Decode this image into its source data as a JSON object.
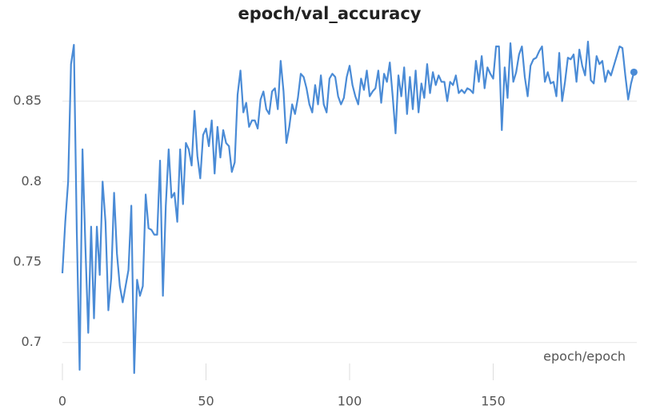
{
  "chart_data": {
    "type": "line",
    "title": "epoch/val_accuracy",
    "x_label": "epoch/epoch",
    "color": "#4a8bd6",
    "x": [
      0,
      1,
      2,
      3,
      4,
      5,
      6,
      7,
      8,
      9,
      10,
      11,
      12,
      13,
      14,
      15,
      16,
      17,
      18,
      19,
      20,
      21,
      22,
      23,
      24,
      25,
      26,
      27,
      28,
      29,
      30,
      31,
      32,
      33,
      34,
      35,
      36,
      37,
      38,
      39,
      40,
      41,
      42,
      43,
      44,
      45,
      46,
      47,
      48,
      49,
      50,
      51,
      52,
      53,
      54,
      55,
      56,
      57,
      58,
      59,
      60,
      61,
      62,
      63,
      64,
      65,
      66,
      67,
      68,
      69,
      70,
      71,
      72,
      73,
      74,
      75,
      76,
      77,
      78,
      79,
      80,
      81,
      82,
      83,
      84,
      85,
      86,
      87,
      88,
      89,
      90,
      91,
      92,
      93,
      94,
      95,
      96,
      97,
      98,
      99,
      100,
      101,
      102,
      103,
      104,
      105,
      106,
      107,
      108,
      109,
      110,
      111,
      112,
      113,
      114,
      115,
      116,
      117,
      118,
      119,
      120,
      121,
      122,
      123,
      124,
      125,
      126,
      127,
      128,
      129,
      130,
      131,
      132,
      133,
      134,
      135,
      136,
      137,
      138,
      139,
      140,
      141,
      142,
      143,
      144,
      145,
      146,
      147,
      148,
      149,
      150,
      151,
      152,
      153,
      154,
      155,
      156,
      157,
      158,
      159,
      160,
      161,
      162,
      163,
      164,
      165,
      166,
      167,
      168,
      169,
      170,
      171,
      172,
      173,
      174,
      175,
      176,
      177,
      178,
      179,
      180,
      181,
      182,
      183,
      184,
      185,
      186,
      187,
      188,
      189,
      190,
      191,
      192,
      193,
      194,
      195,
      196,
      197,
      198,
      199
    ],
    "values": [
      0.743,
      0.775,
      0.8,
      0.873,
      0.885,
      0.77,
      0.683,
      0.82,
      0.76,
      0.706,
      0.772,
      0.715,
      0.772,
      0.742,
      0.8,
      0.775,
      0.72,
      0.74,
      0.793,
      0.755,
      0.735,
      0.725,
      0.735,
      0.745,
      0.785,
      0.681,
      0.739,
      0.729,
      0.735,
      0.792,
      0.771,
      0.77,
      0.767,
      0.767,
      0.813,
      0.729,
      0.785,
      0.82,
      0.79,
      0.793,
      0.775,
      0.82,
      0.786,
      0.824,
      0.82,
      0.81,
      0.844,
      0.816,
      0.802,
      0.829,
      0.833,
      0.822,
      0.838,
      0.805,
      0.834,
      0.815,
      0.832,
      0.824,
      0.822,
      0.806,
      0.812,
      0.854,
      0.869,
      0.843,
      0.849,
      0.834,
      0.838,
      0.838,
      0.833,
      0.851,
      0.856,
      0.845,
      0.842,
      0.856,
      0.858,
      0.845,
      0.875,
      0.856,
      0.824,
      0.834,
      0.848,
      0.842,
      0.852,
      0.867,
      0.865,
      0.858,
      0.848,
      0.843,
      0.86,
      0.848,
      0.866,
      0.848,
      0.843,
      0.864,
      0.867,
      0.865,
      0.853,
      0.848,
      0.852,
      0.865,
      0.872,
      0.86,
      0.853,
      0.848,
      0.864,
      0.857,
      0.869,
      0.853,
      0.856,
      0.858,
      0.869,
      0.849,
      0.867,
      0.862,
      0.874,
      0.853,
      0.83,
      0.866,
      0.853,
      0.871,
      0.842,
      0.865,
      0.845,
      0.869,
      0.843,
      0.861,
      0.852,
      0.873,
      0.855,
      0.868,
      0.86,
      0.866,
      0.862,
      0.862,
      0.85,
      0.862,
      0.86,
      0.866,
      0.855,
      0.857,
      0.855,
      0.858,
      0.857,
      0.855,
      0.875,
      0.862,
      0.878,
      0.858,
      0.871,
      0.867,
      0.864,
      0.884,
      0.884,
      0.832,
      0.871,
      0.852,
      0.886,
      0.862,
      0.868,
      0.879,
      0.884,
      0.865,
      0.853,
      0.872,
      0.876,
      0.877,
      0.881,
      0.884,
      0.862,
      0.868,
      0.861,
      0.862,
      0.853,
      0.88,
      0.85,
      0.862,
      0.877,
      0.876,
      0.879,
      0.862,
      0.882,
      0.872,
      0.866,
      0.887,
      0.863,
      0.861,
      0.878,
      0.873,
      0.875,
      0.862,
      0.869,
      0.866,
      0.872,
      0.878,
      0.884,
      0.883,
      0.866,
      0.851,
      0.861,
      0.868
    ],
    "xlim": [
      0,
      200
    ],
    "xticks": [
      0,
      50,
      100,
      150
    ],
    "ylim": [
      0.68,
      0.893
    ],
    "yticks": [
      0.7,
      0.75,
      0.8,
      0.85
    ],
    "grid": true
  }
}
